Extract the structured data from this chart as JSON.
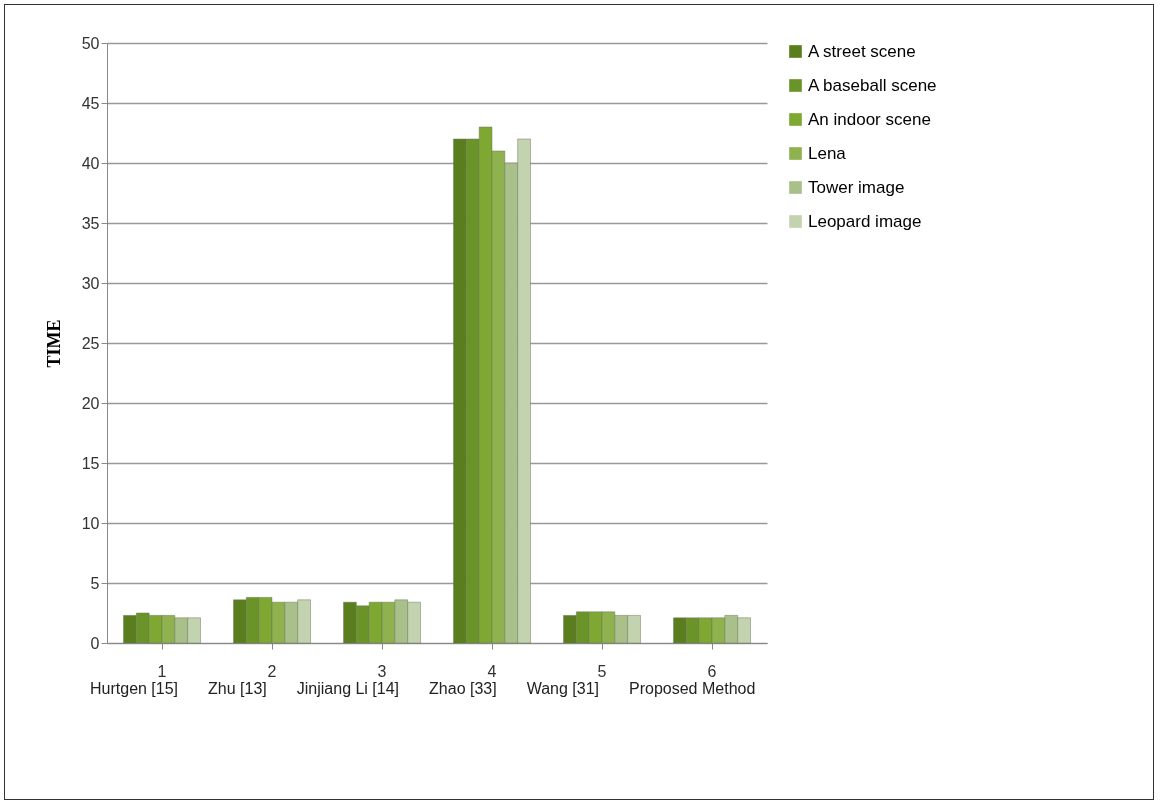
{
  "chart_data": {
    "type": "bar",
    "ylabel": "TIME",
    "categories": [
      "1",
      "2",
      "3",
      "4",
      "5",
      "6"
    ],
    "series": [
      {
        "name": "A street scene",
        "color": "#5a7d1e",
        "values": [
          2.3,
          3.6,
          3.4,
          42,
          2.3,
          2.1
        ]
      },
      {
        "name": "A baseball scene",
        "color": "#6b9428",
        "values": [
          2.5,
          3.8,
          3.1,
          42,
          2.6,
          2.1
        ]
      },
      {
        "name": "An indoor scene",
        "color": "#7ea832",
        "values": [
          2.3,
          3.8,
          3.4,
          43,
          2.6,
          2.1
        ]
      },
      {
        "name": "Lena",
        "color": "#8fb24e",
        "values": [
          2.3,
          3.4,
          3.4,
          41,
          2.6,
          2.1
        ]
      },
      {
        "name": "Tower image",
        "color": "#a9c08a",
        "values": [
          2.1,
          3.4,
          3.6,
          40,
          2.3,
          2.3
        ]
      },
      {
        "name": "Leopard image",
        "color": "#c3d3b0",
        "values": [
          2.1,
          3.6,
          3.4,
          42,
          2.3,
          2.1
        ]
      }
    ],
    "ylim": [
      0,
      50
    ],
    "yticks": [
      0,
      5,
      10,
      15,
      20,
      25,
      30,
      35,
      40,
      45,
      50
    ],
    "grid": "y",
    "legend": "right",
    "annotations": [
      "Hurtgen [15]",
      "Zhu [13]",
      "Jinjiang Li [14]",
      "Zhao [33]",
      "Wang [31]",
      "Proposed Method"
    ]
  }
}
